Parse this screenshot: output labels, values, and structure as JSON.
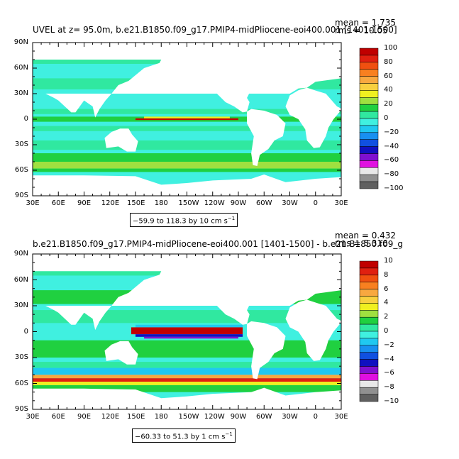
{
  "chart_data": [
    {
      "type": "heatmap",
      "title": "UVEL at z=  95.0m, b.e21.B1850.f09_g17.PMIP4-midPliocene-eoi400.001 [1401-1500]",
      "stats": [
        "mean = 1.735",
        "rms = 10.05"
      ],
      "x_ticks": [
        "30E",
        "60E",
        "90E",
        "120E",
        "150E",
        "180",
        "150W",
        "120W",
        "90W",
        "60W",
        "30W",
        "0",
        "30E"
      ],
      "y_ticks": [
        "90N",
        "60N",
        "30N",
        "0",
        "30S",
        "60S",
        "90S"
      ],
      "range_note": "−59.9 to 118.3 by 10 cm s",
      "range_unit_sup": "−1",
      "colorbar": {
        "labels": [
          "100",
          "80",
          "60",
          "40",
          "20",
          "0",
          "−20",
          "−40",
          "−60",
          "−80",
          "−100"
        ],
        "colors": [
          "#c00000",
          "#e02010",
          "#f05010",
          "#f88020",
          "#f8a840",
          "#f8d040",
          "#f0f020",
          "#a0e040",
          "#20d040",
          "#30e8a0",
          "#40f0e0",
          "#20c8f0",
          "#1890f0",
          "#1050e0",
          "#1010c0",
          "#8010d0",
          "#e010e0",
          "#e8e8e8",
          "#909090",
          "#606060"
        ]
      }
    },
    {
      "type": "heatmap",
      "title": "b.e21.B1850.f09_g17.PMIP4-midPliocene-eoi400.001 [1401-1500] - b.e21.B1850.f09_g",
      "stats": [
        "mean = 0.432",
        "rms = 5.316"
      ],
      "x_ticks": [
        "30E",
        "60E",
        "90E",
        "120E",
        "150E",
        "180",
        "150W",
        "120W",
        "90W",
        "60W",
        "30W",
        "0",
        "30E"
      ],
      "y_ticks": [
        "90N",
        "60N",
        "30N",
        "0",
        "30S",
        "60S",
        "90S"
      ],
      "range_note": "−60.33 to 51.3 by 1 cm s",
      "range_unit_sup": "−1",
      "colorbar": {
        "labels": [
          "10",
          "8",
          "6",
          "4",
          "2",
          "0",
          "−2",
          "−4",
          "−6",
          "−8",
          "−10"
        ],
        "colors": [
          "#c00000",
          "#e02010",
          "#f05010",
          "#f88020",
          "#f8a840",
          "#f8d040",
          "#f0f020",
          "#a0e040",
          "#20d040",
          "#30e8a0",
          "#40f0e0",
          "#20c8f0",
          "#1890f0",
          "#1050e0",
          "#1010c0",
          "#8010d0",
          "#e010e0",
          "#e8e8e8",
          "#909090",
          "#606060"
        ]
      }
    }
  ]
}
